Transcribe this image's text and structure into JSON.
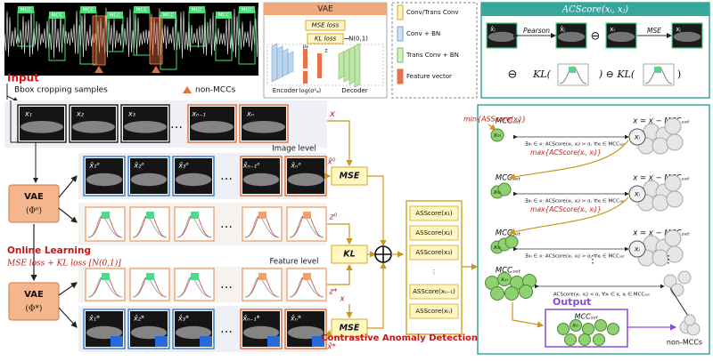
{
  "input": {
    "label": "Input",
    "mcc_tag": "MCC",
    "caption": "Bbox cropping samples",
    "non_mcc_legend": "non-MCCs"
  },
  "vae": {
    "title": "VAE",
    "mse_loss": "MSE loss",
    "kl_loss": "KL loss",
    "prior": "N(0,1)",
    "encoder": "Encoder",
    "decoder": "Decoder",
    "logvar": "log(σ²ᵩ)",
    "mu": "μᵩ",
    "z": "z"
  },
  "legend": {
    "items": [
      "Conv/Trans Conv",
      "Conv + BN",
      "Trans Conv + BN",
      "Feature vector"
    ]
  },
  "acscore": {
    "title": "ACScore(xᵢ, xⱼ)",
    "pearson": "Pearson",
    "mse": "MSE",
    "minus": "⊖",
    "kl_open": "KL(",
    "kl_mid": ") ⊖ KL(",
    "kl_close": ")",
    "xi_hat": "x̂ᵢ",
    "xj_hat": "x̂ⱼ",
    "xi": "xᵢ",
    "xj": "xⱼ"
  },
  "samples": {
    "items": [
      "x₁",
      "x₂",
      "x₃",
      "xₙ₋₁",
      "xₙ"
    ],
    "ellipsis": "…",
    "x_label": "x"
  },
  "pipeline": {
    "image_level": "Image level",
    "feature_level": "Feature level",
    "x_hat0": "x̂⁰",
    "z0": "z⁰",
    "z_star": "z*",
    "x": "x",
    "x_hat_star": "x̂*",
    "mse": "MSE",
    "kl": "KL",
    "vae": "VAE",
    "phi0": "(Φ⁰)",
    "phi_star": "(Φ*)",
    "online": "Online Learning",
    "loss": "MSE loss + KL loss [N(0,1)]",
    "recon0": [
      "x̂₁⁰",
      "x̂₂⁰",
      "x̂₃⁰",
      "x̂ₙ₋₁⁰",
      "x̂ₙ⁰"
    ],
    "recon_star": [
      "x̂₁*",
      "x̂₂*",
      "x̂₃*",
      "x̂ₙ₋₁*",
      "x̂ₙ*"
    ]
  },
  "scores": {
    "items": [
      "ASScore(x₁)",
      "ASScore(x₂)",
      "ASScore(x₃)",
      "⋮",
      "ASScore(xₙ₋₁)",
      "ASScore(xₙ)"
    ]
  },
  "detection": {
    "title": "Contrastive Anomaly Detection",
    "min_rule": "min{ASScore(xᵢ)}",
    "max_rule": "max{ACScore(xᵢ, xⱼ)}",
    "mcc_set": "MCCₛₑₜ",
    "update": "x = x − MCCₛₑₜ",
    "condition_gt": "∃xᵢ ∈ x: ACScore(xᵢ, xⱼ) > α, ∀xⱼ ∈ MCCₛₑₜ",
    "condition_lt": "ACScore(xᵢ, xⱼ) < α, ∀xᵢ ∈ x, xⱼ ∈ MCCₛₑₜ",
    "xm": "xₘ",
    "xi": "xᵢ",
    "output": "Output",
    "non_mccs": "non-MCCs",
    "dots": "⋮"
  }
}
